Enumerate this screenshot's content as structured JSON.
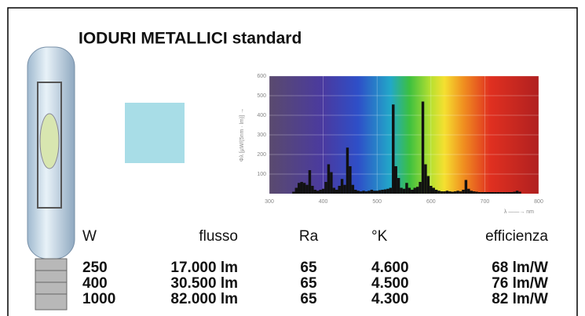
{
  "header": {
    "title": "IODURI METALLICI  standard"
  },
  "spectrum": {
    "type": "bar",
    "y_label": "Φλ [µW/(5nm · lm)] →",
    "x_label": "λ ——→ nm",
    "xlim": [
      300,
      800
    ],
    "xticks": [
      300,
      400,
      500,
      600,
      700,
      800
    ],
    "ylim": [
      0,
      600
    ],
    "yticks": [
      100,
      200,
      300,
      400,
      500,
      600
    ],
    "grid": true,
    "color": "#111111",
    "x": [
      345,
      350,
      355,
      360,
      365,
      370,
      375,
      380,
      385,
      390,
      395,
      400,
      405,
      410,
      415,
      420,
      425,
      430,
      435,
      440,
      445,
      450,
      455,
      460,
      465,
      470,
      475,
      480,
      485,
      490,
      495,
      500,
      505,
      510,
      515,
      520,
      525,
      530,
      535,
      540,
      545,
      550,
      555,
      560,
      565,
      570,
      575,
      580,
      585,
      590,
      595,
      600,
      605,
      610,
      615,
      620,
      625,
      630,
      635,
      640,
      645,
      650,
      655,
      660,
      665,
      670,
      675,
      680,
      685,
      690,
      695,
      700,
      705,
      710,
      715,
      720,
      725,
      730,
      735,
      740,
      745,
      750,
      755,
      760,
      765
    ],
    "values": [
      10,
      30,
      55,
      60,
      55,
      45,
      120,
      40,
      20,
      15,
      20,
      25,
      60,
      150,
      110,
      30,
      20,
      40,
      75,
      45,
      235,
      140,
      45,
      20,
      15,
      12,
      15,
      12,
      15,
      20,
      15,
      15,
      18,
      20,
      22,
      25,
      30,
      455,
      140,
      80,
      30,
      25,
      55,
      30,
      20,
      30,
      35,
      60,
      470,
      150,
      90,
      40,
      30,
      20,
      15,
      12,
      12,
      15,
      12,
      10,
      12,
      15,
      12,
      20,
      70,
      25,
      15,
      12,
      10,
      8,
      8,
      8,
      8,
      8,
      8,
      8,
      8,
      8,
      8,
      8,
      8,
      8,
      10,
      15,
      10
    ]
  },
  "table": {
    "header": [
      "W",
      "flusso",
      "Ra",
      "°K",
      "efficienza"
    ],
    "rows": [
      [
        "250",
        "17.000 lm",
        "65",
        "4.600",
        "68 lm/W"
      ],
      [
        "400",
        "30.500 lm",
        "65",
        "4.500",
        "76 lm/W"
      ],
      [
        "1000",
        "82.000 lm",
        "65",
        "4.300",
        "82 lm/W"
      ]
    ]
  }
}
